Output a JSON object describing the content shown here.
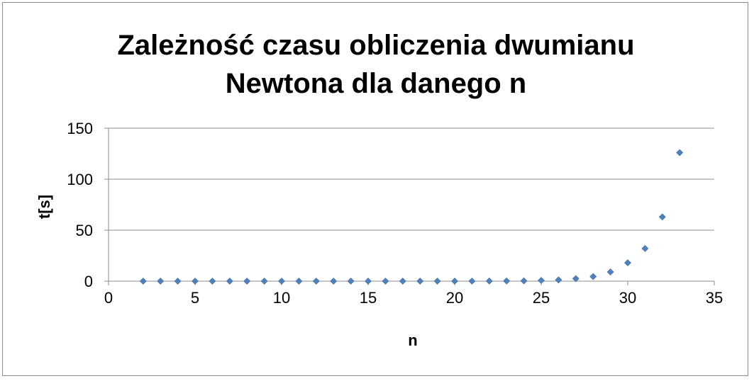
{
  "chart_data": {
    "type": "scatter",
    "title_lines": [
      "Zależność czasu obliczenia dwumianu",
      "Newtona dla danego n"
    ],
    "xlabel": "n",
    "ylabel": "t[s]",
    "xlim": [
      0,
      35
    ],
    "ylim": [
      0,
      150
    ],
    "xticks": [
      0,
      5,
      10,
      15,
      20,
      25,
      30,
      35
    ],
    "yticks": [
      0,
      50,
      100,
      150
    ],
    "grid": "horizontal",
    "legend": "none",
    "marker": "diamond",
    "color": "#4f81bd",
    "series": [
      {
        "x": [
          2,
          3,
          4,
          5,
          6,
          7,
          8,
          9,
          10,
          11,
          12,
          13,
          14,
          15,
          16,
          17,
          18,
          19,
          20,
          21,
          22,
          23,
          24,
          25,
          26,
          27,
          28,
          29,
          30,
          31,
          32,
          33
        ],
        "y": [
          0,
          0,
          0,
          0,
          0,
          0,
          0,
          0,
          0,
          0,
          0,
          0,
          0,
          0,
          0,
          0,
          0,
          0,
          0,
          0,
          0.1,
          0.2,
          0.3,
          0.7,
          1.2,
          2.5,
          4.5,
          9,
          18,
          32,
          63,
          126
        ]
      }
    ]
  }
}
